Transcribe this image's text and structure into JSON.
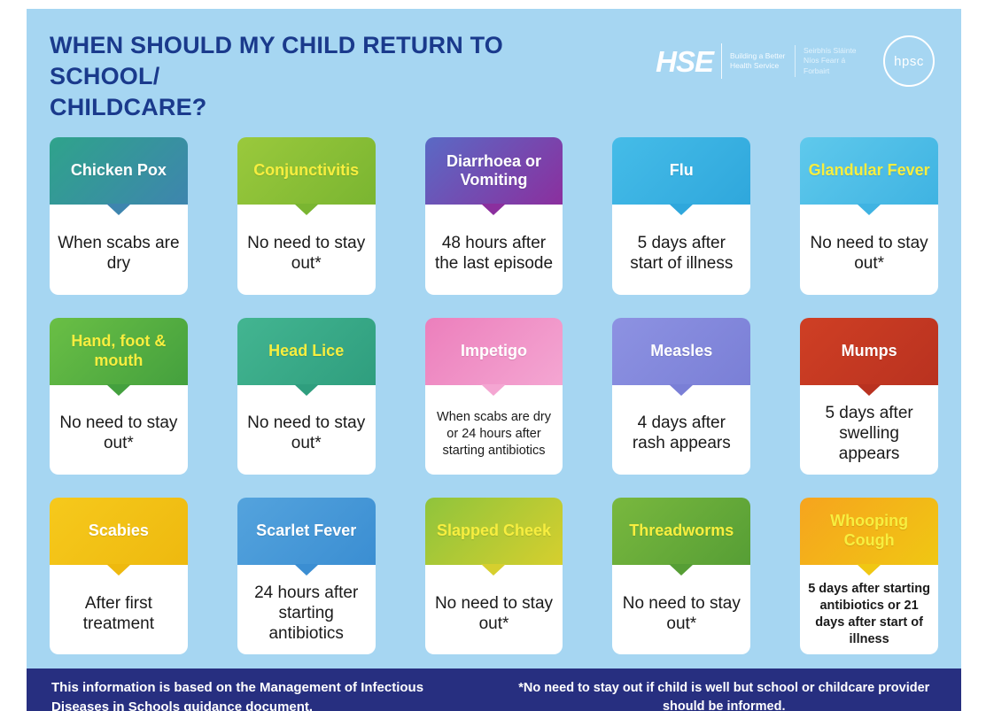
{
  "colors": {
    "page_background": "#ffffff",
    "poster_background": "#a6d6f2",
    "title_color": "#1a3a8c",
    "footer_background": "#272f80",
    "footer_text": "#ffffff",
    "card_body_background": "#ffffff",
    "card_body_text": "#1a1a1a",
    "header_text_yellow": "#f7ee3f",
    "header_text_white": "#ffffff"
  },
  "title_line1": "WHEN SHOULD MY CHILD RETURN TO SCHOOL/",
  "title_line2": "CHILDCARE?",
  "logos": {
    "hse": "HSE",
    "hse_tagline_en": "Building a Better Health Service",
    "hse_tagline_ie": "Seirbhís Sláinte Níos Fearr á Forbairt",
    "hpsc": "hpsc"
  },
  "cards": [
    {
      "name": "Chicken Pox",
      "body": "When scabs are dry",
      "color_from": "#2fa38b",
      "color_to": "#3e85ae",
      "text_color": "#ffffff"
    },
    {
      "name": "Conjunctivitis",
      "body": "No need to stay out*",
      "color_from": "#9ac93c",
      "color_to": "#7ab531",
      "text_color": "#f7ee3f"
    },
    {
      "name": "Diarrhoea or Vomiting",
      "body": "48 hours after the last episode",
      "color_from": "#5a6ac5",
      "color_to": "#8b2f9e",
      "text_color": "#ffffff"
    },
    {
      "name": "Flu",
      "body": "5 days after start of illness",
      "color_from": "#45bce8",
      "color_to": "#2fa7dc",
      "text_color": "#ffffff"
    },
    {
      "name": "Glandular Fever",
      "body": "No need to stay out*",
      "color_from": "#5fc9ec",
      "color_to": "#3fb3e2",
      "text_color": "#f7ee3f"
    },
    {
      "name": "Hand, foot & mouth",
      "body": "No need to stay out*",
      "color_from": "#6abf45",
      "color_to": "#44a03e",
      "text_color": "#f7ee3f"
    },
    {
      "name": "Head Lice",
      "body": "No need to stay out*",
      "color_from": "#43b591",
      "color_to": "#2f9e7e",
      "text_color": "#f7ee3f"
    },
    {
      "name": "Impetigo",
      "body": "When scabs are dry or 24 hours after starting antibiotics",
      "color_from": "#ec7fbc",
      "color_to": "#f4a6d2",
      "text_color": "#ffffff"
    },
    {
      "name": "Measles",
      "body": "4 days after rash appears",
      "color_from": "#8d92e2",
      "color_to": "#7a7fd6",
      "text_color": "#ffffff"
    },
    {
      "name": "Mumps",
      "body": "5 days after swelling appears",
      "color_from": "#cf3f24",
      "color_to": "#b93220",
      "text_color": "#ffffff"
    },
    {
      "name": "Scabies",
      "body": "After first treatment",
      "color_from": "#f6c91c",
      "color_to": "#eeb90f",
      "text_color": "#ffffff"
    },
    {
      "name": "Scarlet Fever",
      "body": "24 hours after starting antibiotics",
      "color_from": "#54a3dd",
      "color_to": "#3b8ed2",
      "text_color": "#ffffff"
    },
    {
      "name": "Slapped Cheek",
      "body": "No need to stay out*",
      "color_from": "#8fc43c",
      "color_to": "#d6cf2e",
      "text_color": "#f7ee3f"
    },
    {
      "name": "Threadworms",
      "body": "No need to stay out*",
      "color_from": "#79b83e",
      "color_to": "#569e35",
      "text_color": "#f7ee3f"
    },
    {
      "name": "Whooping Cough",
      "body": "5 days after starting antibiotics or 21 days after start of illness",
      "color_from": "#f6a41e",
      "color_to": "#f0c713",
      "text_color": "#f7ee3f",
      "body_weight": "bold"
    }
  ],
  "footer": {
    "left": "This information is based on the Management of Infectious Diseases in Schools guidance document.",
    "right": "*No need to stay out if child is well but school or childcare provider should be informed."
  }
}
